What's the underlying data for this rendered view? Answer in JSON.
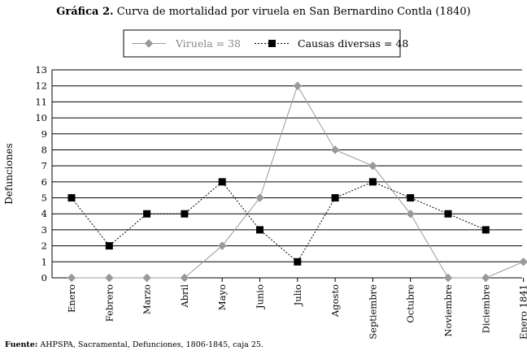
{
  "figure": {
    "title_prefix": "Gráfica 2.",
    "title_text": "Curva de mortalidad por viruela en San Bernardino Contla (1840)",
    "source_prefix": "Fuente:",
    "source_text": "AHPSPA, Sacramental, Defunciones, 1806-1845, caja 25."
  },
  "chart_data": {
    "type": "line",
    "title": "Gráfica 2. Curva de mortalidad por viruela en San Bernardino Contla (1840)",
    "xlabel": "",
    "ylabel": "Defunciones",
    "ylim": [
      0,
      13
    ],
    "yticks": [
      "0",
      "1",
      "2",
      "3",
      "4",
      "5",
      "6",
      "7",
      "8",
      "9",
      "10",
      "11",
      "12",
      "13"
    ],
    "grid": "horizontal",
    "legend_position": "top-center",
    "categories": [
      "Enero",
      "Febrero",
      "Marzo",
      "Abril",
      "Mayo",
      "Junio",
      "Julio",
      "Agosto",
      "Septiembre",
      "Octubre",
      "Noviembre",
      "Diciembre",
      "Enero 1841"
    ],
    "series": [
      {
        "name": "Viruela = 38",
        "color": "#999999",
        "marker": "diamond",
        "line": "solid",
        "values": [
          0,
          0,
          0,
          0,
          2,
          5,
          12,
          8,
          7,
          4,
          0,
          0,
          1
        ]
      },
      {
        "name": "Causas diversas = 48",
        "color": "#000000",
        "marker": "square",
        "line": "dotted",
        "values": [
          5,
          2,
          4,
          4,
          6,
          3,
          1,
          5,
          6,
          5,
          4,
          3,
          null
        ]
      }
    ]
  }
}
